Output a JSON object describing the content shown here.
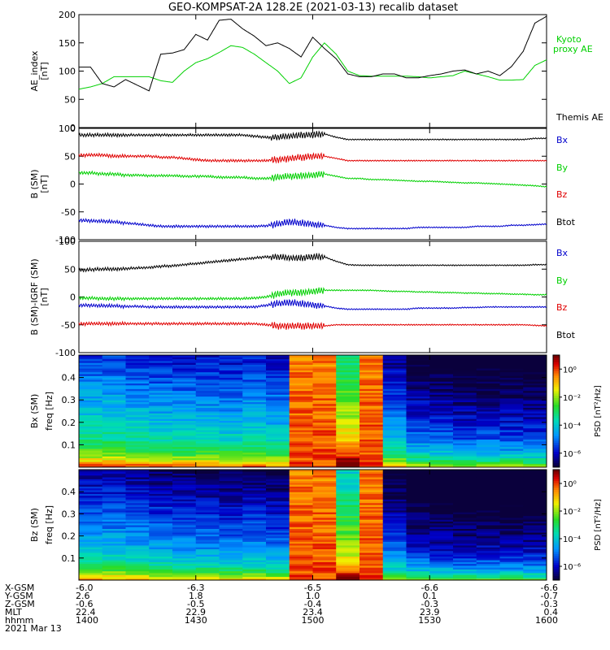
{
  "title": "GEO-KOMPSAT-2A 128.2E (2021-03-13) recalib dataset",
  "colors": {
    "black": "#000000",
    "red": "#e00000",
    "green": "#00d000",
    "blue": "#0000cc"
  },
  "time_axis": {
    "start": 1400,
    "end": 1600
  },
  "ephemeris": {
    "rows": [
      {
        "label": "X-GSM",
        "values": [
          "-6.0",
          "-6.3",
          "-6.5",
          "-6.6",
          "-6.6"
        ]
      },
      {
        "label": "Y-GSM",
        "values": [
          "2.6",
          "1.8",
          "1.0",
          "0.1",
          "-0.7"
        ]
      },
      {
        "label": "Z-GSM",
        "values": [
          "-0.6",
          "-0.5",
          "-0.4",
          "-0.3",
          "-0.3"
        ]
      },
      {
        "label": "MLT",
        "values": [
          "22.4",
          "22.9",
          "23.4",
          "23.9",
          "0.4"
        ]
      },
      {
        "label": "hhmm",
        "values": [
          "1400",
          "1430",
          "1500",
          "1530",
          "1600"
        ]
      }
    ],
    "date": "2021 Mar 13"
  },
  "chart_data": [
    {
      "type": "line",
      "ylabel": "AE_index",
      "yunit": "[nT]",
      "ylim": [
        0,
        200
      ],
      "yticks": [
        "0",
        "50",
        "100",
        "150",
        "200"
      ],
      "x": [
        1400,
        1405,
        1410,
        1415,
        1420,
        1425,
        1430,
        1435,
        1440,
        1445,
        1450,
        1455,
        1460,
        1465,
        1470,
        1475,
        1480,
        1485,
        1490,
        1495,
        1500,
        1505,
        1510,
        1515,
        1520,
        1525,
        1530,
        1535,
        1540,
        1545,
        1550,
        1555,
        1560,
        1565,
        1570,
        1575,
        1580,
        1585,
        1590,
        1595,
        1600
      ],
      "series": [
        {
          "name": "Kyoto proxy AE",
          "color": "#00d000",
          "values": [
            68,
            72,
            78,
            90,
            90,
            90,
            90,
            83,
            80,
            100,
            115,
            122,
            133,
            145,
            142,
            130,
            115,
            100,
            78,
            88,
            125,
            150,
            130,
            100,
            92,
            91,
            91,
            91,
            91,
            90,
            88,
            90,
            92,
            100,
            95,
            90,
            84,
            84,
            85,
            110,
            120
          ]
        },
        {
          "name": "Themis AE",
          "color": "#000000",
          "values": [
            107,
            107,
            78,
            72,
            85,
            75,
            65,
            130,
            132,
            138,
            165,
            155,
            190,
            192,
            175,
            162,
            145,
            150,
            140,
            125,
            160,
            140,
            122,
            95,
            90,
            90,
            95,
            95,
            88,
            88,
            92,
            95,
            100,
            102,
            95,
            100,
            92,
            108,
            135,
            185,
            197
          ]
        }
      ]
    },
    {
      "type": "line",
      "ylabel": "B (SM)",
      "yunit": "[nT]",
      "ylim": [
        -100,
        100
      ],
      "yticks": [
        "-100",
        "-50",
        "0",
        "50",
        "100"
      ],
      "x": [
        1400,
        1405,
        1410,
        1415,
        1420,
        1425,
        1430,
        1435,
        1440,
        1445,
        1450,
        1455,
        1460,
        1465,
        1470,
        1475,
        1480,
        1485,
        1490,
        1495,
        1500,
        1505,
        1510,
        1515,
        1520,
        1525,
        1530,
        1535,
        1540,
        1545,
        1550,
        1555,
        1560,
        1565,
        1570,
        1575,
        1580,
        1585,
        1590,
        1595,
        1600
      ],
      "series": [
        {
          "name": "Bx",
          "color": "#000000",
          "values": [
            88,
            88,
            88,
            88,
            88,
            88,
            88,
            88,
            88,
            88,
            88,
            88,
            88,
            88,
            88,
            86,
            84,
            84,
            86,
            88,
            88,
            90,
            84,
            80,
            80,
            80,
            80,
            80,
            80,
            80,
            80,
            80,
            80,
            80,
            80,
            80,
            80,
            80,
            80,
            82,
            82
          ]
        },
        {
          "name": "By",
          "color": "#00d000",
          "values": [
            20,
            20,
            18,
            18,
            16,
            16,
            15,
            15,
            15,
            14,
            14,
            14,
            12,
            12,
            12,
            10,
            10,
            12,
            14,
            15,
            16,
            18,
            14,
            10,
            10,
            8,
            8,
            7,
            6,
            5,
            5,
            4,
            3,
            2,
            2,
            1,
            0,
            -1,
            -2,
            -3,
            -5
          ]
        },
        {
          "name": "Bz",
          "color": "#e00000",
          "values": [
            52,
            52,
            52,
            50,
            50,
            50,
            50,
            48,
            48,
            46,
            44,
            42,
            42,
            42,
            42,
            42,
            42,
            44,
            46,
            48,
            50,
            50,
            46,
            42,
            42,
            42,
            42,
            42,
            42,
            42,
            42,
            42,
            42,
            42,
            42,
            42,
            42,
            42,
            42,
            42,
            42
          ]
        },
        {
          "name": "Btot",
          "color": "#0000cc",
          "values": [
            -65,
            -66,
            -67,
            -68,
            -70,
            -72,
            -74,
            -76,
            -76,
            -76,
            -76,
            -76,
            -76,
            -76,
            -76,
            -76,
            -75,
            -72,
            -68,
            -70,
            -72,
            -74,
            -78,
            -80,
            -80,
            -80,
            -80,
            -80,
            -80,
            -78,
            -78,
            -78,
            -78,
            -78,
            -76,
            -76,
            -76,
            -74,
            -74,
            -73,
            -72
          ]
        }
      ]
    },
    {
      "type": "line",
      "ylabel": "B (SM)-IGRF (SM)",
      "yunit": "[nT]",
      "ylim": [
        -100,
        100
      ],
      "yticks": [
        "-100",
        "-50",
        "0",
        "50",
        "100"
      ],
      "x": [
        1400,
        1405,
        1410,
        1415,
        1420,
        1425,
        1430,
        1435,
        1440,
        1445,
        1450,
        1455,
        1460,
        1465,
        1470,
        1475,
        1480,
        1485,
        1490,
        1495,
        1500,
        1505,
        1510,
        1515,
        1520,
        1525,
        1530,
        1535,
        1540,
        1545,
        1550,
        1555,
        1560,
        1565,
        1570,
        1575,
        1580,
        1585,
        1590,
        1595,
        1600
      ],
      "series": [
        {
          "name": "Bx",
          "color": "#000000",
          "values": [
            48,
            49,
            50,
            50,
            51,
            52,
            53,
            55,
            56,
            58,
            60,
            62,
            64,
            66,
            68,
            70,
            72,
            72,
            70,
            70,
            72,
            72,
            64,
            58,
            57,
            57,
            57,
            57,
            57,
            57,
            57,
            57,
            57,
            57,
            57,
            57,
            57,
            57,
            57,
            58,
            58
          ]
        },
        {
          "name": "By",
          "color": "#00d000",
          "values": [
            -2,
            -2,
            -3,
            -3,
            -3,
            -3,
            -3,
            -3,
            -3,
            -3,
            -3,
            -3,
            -3,
            -3,
            -3,
            -2,
            0,
            5,
            8,
            8,
            10,
            12,
            12,
            12,
            12,
            12,
            11,
            10,
            10,
            9,
            9,
            8,
            8,
            7,
            7,
            6,
            6,
            5,
            5,
            4,
            4
          ]
        },
        {
          "name": "Bz",
          "color": "#e00000",
          "values": [
            -48,
            -48,
            -48,
            -48,
            -48,
            -48,
            -48,
            -48,
            -48,
            -48,
            -48,
            -48,
            -48,
            -48,
            -48,
            -48,
            -50,
            -52,
            -52,
            -52,
            -52,
            -52,
            -50,
            -50,
            -50,
            -50,
            -50,
            -50,
            -50,
            -50,
            -50,
            -50,
            -50,
            -50,
            -50,
            -50,
            -50,
            -50,
            -50,
            -51,
            -52
          ]
        },
        {
          "name": "Btot",
          "color": "#0000cc",
          "values": [
            -15,
            -15,
            -16,
            -16,
            -17,
            -17,
            -18,
            -18,
            -18,
            -18,
            -18,
            -18,
            -18,
            -18,
            -18,
            -18,
            -15,
            -12,
            -10,
            -12,
            -14,
            -16,
            -20,
            -22,
            -22,
            -22,
            -22,
            -22,
            -22,
            -20,
            -20,
            -20,
            -20,
            -19,
            -19,
            -18,
            -18,
            -18,
            -18,
            -18,
            -18
          ]
        }
      ]
    },
    {
      "type": "heatmap",
      "ylabel": "Bx (SM)",
      "yunit": "freq [Hz]",
      "ylim": [
        0,
        0.5
      ],
      "yticks": [
        "0.1",
        "0.2",
        "0.3",
        "0.4"
      ],
      "colorbar": {
        "label": "PSD [nT²/Hz]",
        "tick_labels": [
          "10⁰",
          "10⁻²",
          "10⁻⁴",
          "10⁻⁶"
        ],
        "tick_exponents": [
          0,
          -2,
          -4,
          -6
        ],
        "range_exponent": [
          -7,
          1
        ]
      },
      "time_bins": 20,
      "time_level": [
        0.52,
        0.52,
        0.5,
        0.48,
        0.47,
        0.47,
        0.46,
        0.48,
        0.45,
        0.96,
        0.92,
        0.8,
        0.93,
        0.4,
        0.3,
        0.28,
        0.26,
        0.27,
        0.26,
        0.25
      ]
    },
    {
      "type": "heatmap",
      "ylabel": "Bz (SM)",
      "yunit": "freq [Hz]",
      "ylim": [
        0,
        0.5
      ],
      "yticks": [
        "0.1",
        "0.2",
        "0.3",
        "0.4"
      ],
      "colorbar": {
        "label": "PSD [nT²/Hz]",
        "tick_labels": [
          "10⁰",
          "10⁻²",
          "10⁻⁴",
          "10⁻⁶"
        ],
        "tick_exponents": [
          0,
          -2,
          -4,
          -6
        ],
        "range_exponent": [
          -7,
          1
        ]
      },
      "time_bins": 20,
      "time_level": [
        0.42,
        0.42,
        0.4,
        0.38,
        0.37,
        0.36,
        0.35,
        0.36,
        0.34,
        0.92,
        0.88,
        0.72,
        0.9,
        0.3,
        0.22,
        0.2,
        0.19,
        0.19,
        0.18,
        0.18
      ]
    }
  ],
  "right_labels": {
    "panel1": [
      "Kyoto",
      "proxy AE",
      "Themis AE"
    ],
    "panel2": [
      "Bx",
      "By",
      "Bz",
      "Btot"
    ],
    "panel3": [
      "Bx",
      "By",
      "Bz",
      "Btot"
    ]
  }
}
